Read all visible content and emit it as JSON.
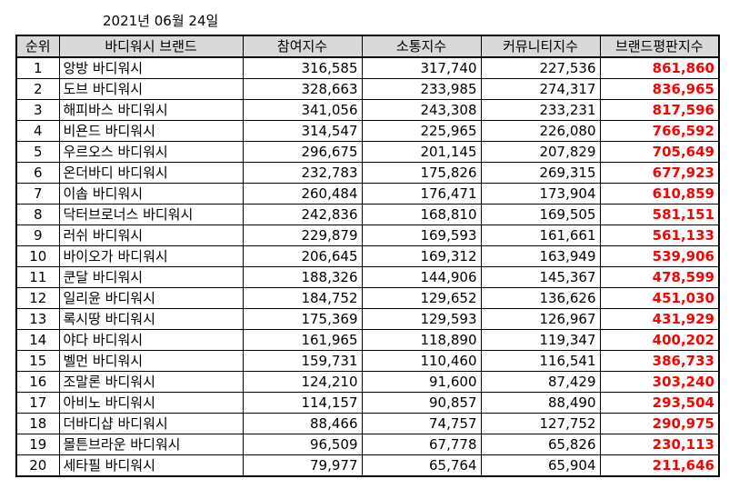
{
  "date": "2021년 06월 24일",
  "colors": {
    "header_bg": "#d9d9d9",
    "score_text": "#ff0000"
  },
  "headers": {
    "rank": "순위",
    "brand": "바디워시 브랜드",
    "participation": "참여지수",
    "communication": "소통지수",
    "community": "커뮤니티지수",
    "reputation": "브랜드평판지수"
  },
  "rows": [
    {
      "rank": "1",
      "brand": "앙방 바디워시",
      "participation": "316,585",
      "communication": "317,740",
      "community": "227,536",
      "reputation": "861,860"
    },
    {
      "rank": "2",
      "brand": "도브 바디워시",
      "participation": "328,663",
      "communication": "233,985",
      "community": "274,317",
      "reputation": "836,965"
    },
    {
      "rank": "3",
      "brand": "해피바스 바디워시",
      "participation": "341,056",
      "communication": "243,308",
      "community": "233,231",
      "reputation": "817,596"
    },
    {
      "rank": "4",
      "brand": "비욘드 바디워시",
      "participation": "314,547",
      "communication": "225,965",
      "community": "226,080",
      "reputation": "766,592"
    },
    {
      "rank": "5",
      "brand": "우르오스 바디워시",
      "participation": "296,675",
      "communication": "201,145",
      "community": "207,829",
      "reputation": "705,649"
    },
    {
      "rank": "6",
      "brand": "온더바디 바디워시",
      "participation": "232,783",
      "communication": "175,826",
      "community": "269,315",
      "reputation": "677,923"
    },
    {
      "rank": "7",
      "brand": "이솝 바디워시",
      "participation": "260,484",
      "communication": "176,471",
      "community": "173,904",
      "reputation": "610,859"
    },
    {
      "rank": "8",
      "brand": "닥터브로너스 바디워시",
      "participation": "242,836",
      "communication": "168,810",
      "community": "169,505",
      "reputation": "581,151"
    },
    {
      "rank": "9",
      "brand": "러쉬 바디워시",
      "participation": "229,879",
      "communication": "169,593",
      "community": "161,661",
      "reputation": "561,133"
    },
    {
      "rank": "10",
      "brand": "바이오가 바디워시",
      "participation": "206,645",
      "communication": "169,312",
      "community": "163,949",
      "reputation": "539,906"
    },
    {
      "rank": "11",
      "brand": "쿤달 바디워시",
      "participation": "188,326",
      "communication": "144,906",
      "community": "145,367",
      "reputation": "478,599"
    },
    {
      "rank": "12",
      "brand": "일리윤 바디워시",
      "participation": "184,752",
      "communication": "129,652",
      "community": "136,626",
      "reputation": "451,030"
    },
    {
      "rank": "13",
      "brand": "록시땅 바디워시",
      "participation": "175,369",
      "communication": "129,593",
      "community": "126,967",
      "reputation": "431,929"
    },
    {
      "rank": "14",
      "brand": "야다 바디워시",
      "participation": "161,965",
      "communication": "118,890",
      "community": "119,347",
      "reputation": "400,202"
    },
    {
      "rank": "15",
      "brand": "벨먼 바디워시",
      "participation": "159,731",
      "communication": "110,460",
      "community": "116,541",
      "reputation": "386,733"
    },
    {
      "rank": "16",
      "brand": "조말론 바디워시",
      "participation": "124,210",
      "communication": "91,600",
      "community": "87,429",
      "reputation": "303,240"
    },
    {
      "rank": "17",
      "brand": "아비노 바디워시",
      "participation": "114,157",
      "communication": "90,857",
      "community": "88,490",
      "reputation": "293,504"
    },
    {
      "rank": "18",
      "brand": "더바디샵 바디워시",
      "participation": "88,466",
      "communication": "74,757",
      "community": "127,752",
      "reputation": "290,975"
    },
    {
      "rank": "19",
      "brand": "몰튼브라운 바디워시",
      "participation": "96,509",
      "communication": "67,778",
      "community": "65,826",
      "reputation": "230,113"
    },
    {
      "rank": "20",
      "brand": "세타필 바디워시",
      "participation": "79,977",
      "communication": "65,764",
      "community": "65,904",
      "reputation": "211,646"
    }
  ]
}
